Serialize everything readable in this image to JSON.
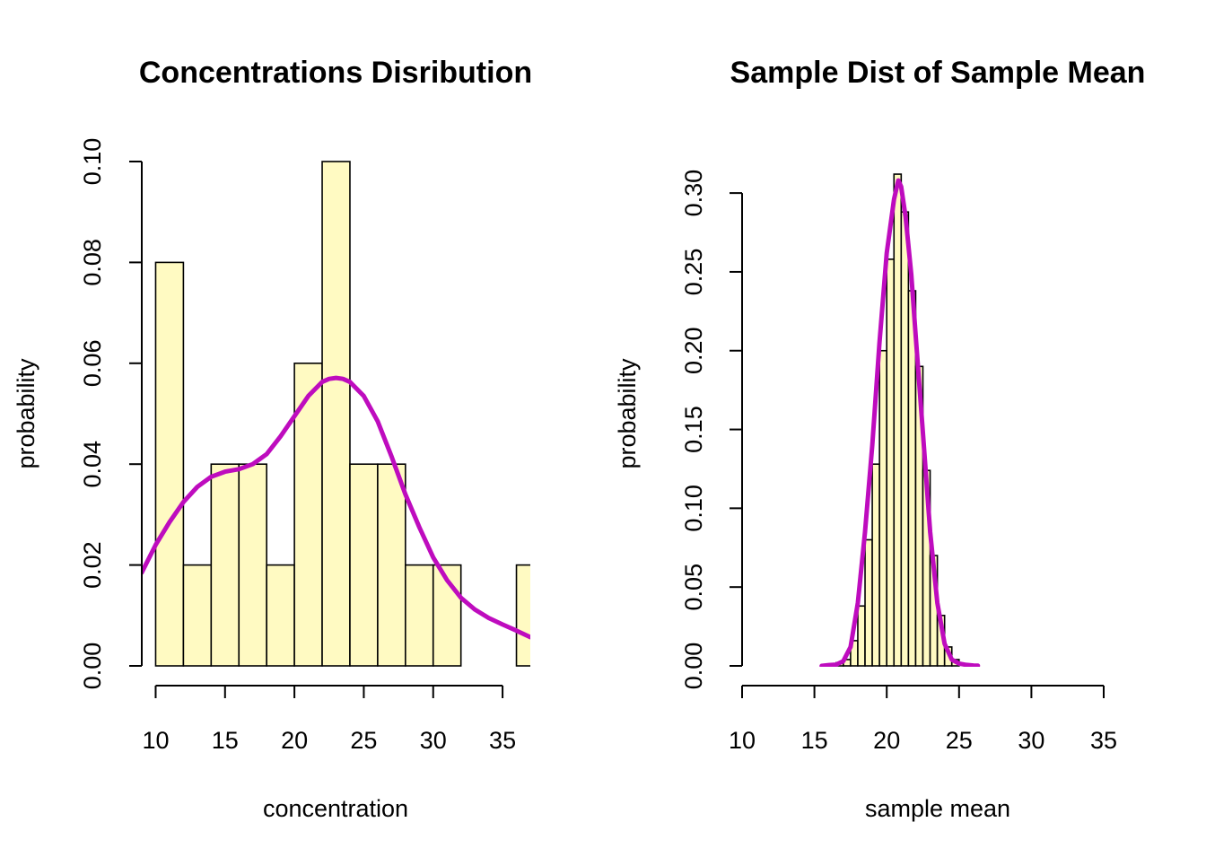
{
  "colors": {
    "bar_fill": "#FFFAC2",
    "density": "#BE0CBE",
    "axis": "#000000"
  },
  "chart_data": [
    {
      "type": "histogram",
      "title": "Concentrations Disribution",
      "xlabel": "concentration",
      "ylabel": "probability",
      "xlim": [
        9,
        37
      ],
      "ylim": [
        0,
        0.1
      ],
      "x_ticks": [
        10,
        15,
        20,
        25,
        30,
        35
      ],
      "y_ticks": [
        "0.00",
        "0.02",
        "0.04",
        "0.06",
        "0.08",
        "0.10"
      ],
      "bin_width": 2,
      "bins": [
        {
          "x0": 10,
          "x1": 12,
          "density": 0.08
        },
        {
          "x0": 12,
          "x1": 14,
          "density": 0.02
        },
        {
          "x0": 14,
          "x1": 16,
          "density": 0.04
        },
        {
          "x0": 16,
          "x1": 18,
          "density": 0.04
        },
        {
          "x0": 18,
          "x1": 20,
          "density": 0.02
        },
        {
          "x0": 20,
          "x1": 22,
          "density": 0.06
        },
        {
          "x0": 22,
          "x1": 24,
          "density": 0.1
        },
        {
          "x0": 24,
          "x1": 26,
          "density": 0.04
        },
        {
          "x0": 26,
          "x1": 28,
          "density": 0.04
        },
        {
          "x0": 28,
          "x1": 30,
          "density": 0.02
        },
        {
          "x0": 30,
          "x1": 32,
          "density": 0.02
        },
        {
          "x0": 32,
          "x1": 34,
          "density": 0.0
        },
        {
          "x0": 34,
          "x1": 36,
          "density": 0.0
        },
        {
          "x0": 36,
          "x1": 38,
          "density": 0.02
        }
      ],
      "density_curve": {
        "x": [
          9,
          10,
          11,
          12,
          13,
          14,
          15,
          16,
          17,
          18,
          19,
          20,
          21,
          22,
          22.5,
          23,
          23.5,
          24,
          25,
          26,
          27,
          28,
          29,
          30,
          31,
          32,
          33,
          34,
          35,
          36,
          37
        ],
        "y": [
          0.0185,
          0.024,
          0.0285,
          0.0325,
          0.0355,
          0.0375,
          0.0385,
          0.039,
          0.04,
          0.042,
          0.0455,
          0.0495,
          0.0535,
          0.0563,
          0.0569,
          0.0571,
          0.0569,
          0.0563,
          0.0535,
          0.0485,
          0.0415,
          0.034,
          0.0275,
          0.0215,
          0.017,
          0.0135,
          0.0112,
          0.0095,
          0.0082,
          0.007,
          0.0057
        ]
      }
    },
    {
      "type": "histogram",
      "title": "Sample Dist of Sample Mean",
      "xlabel": "sample mean",
      "ylabel": "probability",
      "xlim": [
        10,
        35
      ],
      "ylim": [
        0,
        0.3
      ],
      "x_ticks": [
        10,
        15,
        20,
        25,
        30,
        35
      ],
      "y_ticks": [
        "0.00",
        "0.05",
        "0.10",
        "0.15",
        "0.20",
        "0.25",
        "0.30"
      ],
      "bin_width": 0.5,
      "bins": [
        {
          "x0": 16.5,
          "x1": 17,
          "density": 0.002
        },
        {
          "x0": 17,
          "x1": 17.5,
          "density": 0.004
        },
        {
          "x0": 17.5,
          "x1": 18,
          "density": 0.016
        },
        {
          "x0": 18,
          "x1": 18.5,
          "density": 0.038
        },
        {
          "x0": 18.5,
          "x1": 19,
          "density": 0.08
        },
        {
          "x0": 19,
          "x1": 19.5,
          "density": 0.128
        },
        {
          "x0": 19.5,
          "x1": 20,
          "density": 0.2
        },
        {
          "x0": 20,
          "x1": 20.5,
          "density": 0.258
        },
        {
          "x0": 20.5,
          "x1": 21,
          "density": 0.312
        },
        {
          "x0": 21,
          "x1": 21.5,
          "density": 0.288
        },
        {
          "x0": 21.5,
          "x1": 22,
          "density": 0.238
        },
        {
          "x0": 22,
          "x1": 22.5,
          "density": 0.19
        },
        {
          "x0": 22.5,
          "x1": 23,
          "density": 0.124
        },
        {
          "x0": 23,
          "x1": 23.5,
          "density": 0.07
        },
        {
          "x0": 23.5,
          "x1": 24,
          "density": 0.032
        },
        {
          "x0": 24,
          "x1": 24.5,
          "density": 0.012
        },
        {
          "x0": 24.5,
          "x1": 25,
          "density": 0.004
        }
      ],
      "density_curve": {
        "x": [
          15.5,
          16,
          16.5,
          17,
          17.5,
          18,
          18.5,
          19,
          19.5,
          20,
          20.5,
          20.8,
          21,
          21.3,
          21.7,
          22,
          22.5,
          23,
          23.5,
          24,
          24.5,
          25,
          25.5,
          26,
          26.3
        ],
        "y": [
          0.0,
          0.0005,
          0.0008,
          0.003,
          0.012,
          0.04,
          0.085,
          0.14,
          0.205,
          0.262,
          0.296,
          0.308,
          0.304,
          0.285,
          0.248,
          0.21,
          0.148,
          0.085,
          0.04,
          0.014,
          0.004,
          0.0015,
          0.0006,
          0.0002,
          0.0001
        ]
      }
    }
  ]
}
